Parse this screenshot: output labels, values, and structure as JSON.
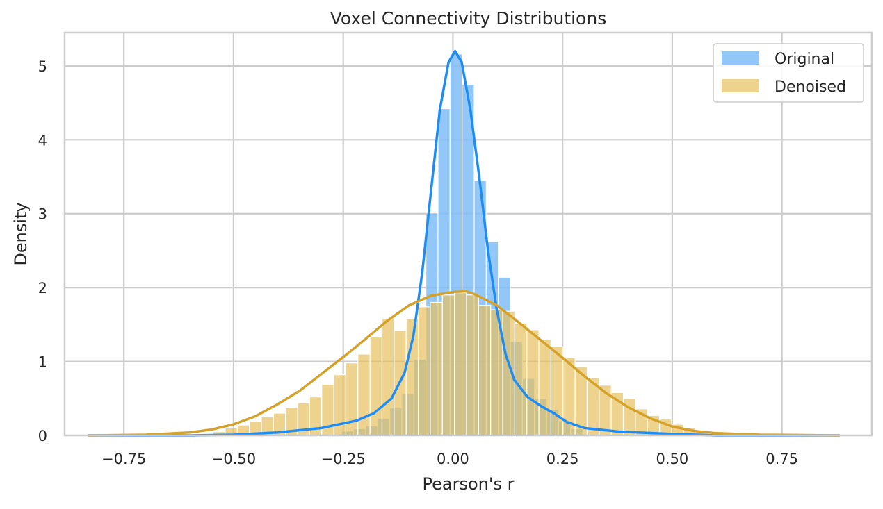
{
  "chart_data": {
    "type": "histogram",
    "title": "Voxel Connectivity Distributions",
    "xlabel": "Pearson's r",
    "ylabel": "Density",
    "xlim": [
      -0.885,
      0.955
    ],
    "ylim": [
      0,
      5.45
    ],
    "xticks": [
      -0.75,
      -0.5,
      -0.25,
      0.0,
      0.25,
      0.5,
      0.75
    ],
    "xtick_labels": [
      "−0.75",
      "−0.50",
      "−0.25",
      "0.00",
      "0.25",
      "0.50",
      "0.75"
    ],
    "yticks": [
      0,
      1,
      2,
      3,
      4,
      5
    ],
    "ytick_labels": [
      "0",
      "1",
      "2",
      "3",
      "4",
      "5"
    ],
    "grid": true,
    "legend_position": "top-right",
    "series": [
      {
        "name": "Original",
        "color": "#1e8cf5",
        "bar_color": "#80bdf7",
        "bin_width": 0.0275,
        "bins": [
          [
            -0.254,
            0.06
          ],
          [
            -0.2265,
            0.09
          ],
          [
            -0.199,
            0.13
          ],
          [
            -0.1715,
            0.23
          ],
          [
            -0.144,
            0.37
          ],
          [
            -0.1165,
            0.57
          ],
          [
            -0.089,
            1.03
          ],
          [
            -0.0615,
            3.01
          ],
          [
            -0.034,
            4.42
          ],
          [
            -0.0065,
            5.16
          ],
          [
            0.021,
            4.75
          ],
          [
            0.0485,
            3.45
          ],
          [
            0.076,
            2.62
          ],
          [
            0.1035,
            2.14
          ],
          [
            0.131,
            1.27
          ],
          [
            0.1585,
            0.77
          ],
          [
            0.186,
            0.5
          ],
          [
            0.2135,
            0.35
          ],
          [
            0.241,
            0.2
          ],
          [
            0.2685,
            0.09
          ]
        ],
        "kde": [
          [
            -0.83,
            0.0
          ],
          [
            -0.6,
            0.0
          ],
          [
            -0.5,
            0.01
          ],
          [
            -0.4,
            0.04
          ],
          [
            -0.3,
            0.1
          ],
          [
            -0.22,
            0.2
          ],
          [
            -0.18,
            0.3
          ],
          [
            -0.14,
            0.5
          ],
          [
            -0.11,
            0.85
          ],
          [
            -0.09,
            1.35
          ],
          [
            -0.07,
            2.2
          ],
          [
            -0.05,
            3.3
          ],
          [
            -0.03,
            4.4
          ],
          [
            -0.01,
            5.05
          ],
          [
            0.005,
            5.2
          ],
          [
            0.02,
            5.05
          ],
          [
            0.04,
            4.4
          ],
          [
            0.06,
            3.5
          ],
          [
            0.08,
            2.5
          ],
          [
            0.1,
            1.7
          ],
          [
            0.12,
            1.1
          ],
          [
            0.14,
            0.75
          ],
          [
            0.17,
            0.52
          ],
          [
            0.2,
            0.4
          ],
          [
            0.23,
            0.3
          ],
          [
            0.26,
            0.18
          ],
          [
            0.3,
            0.1
          ],
          [
            0.38,
            0.05
          ],
          [
            0.5,
            0.02
          ],
          [
            0.6,
            0.0
          ],
          [
            0.88,
            0.0
          ]
        ]
      },
      {
        "name": "Denoised",
        "color": "#d4a12a",
        "bar_color": "#e6c15c",
        "bin_width": 0.0275,
        "bins": [
          [
            -0.5465,
            0.05
          ],
          [
            -0.519,
            0.1
          ],
          [
            -0.4915,
            0.14
          ],
          [
            -0.464,
            0.19
          ],
          [
            -0.4365,
            0.25
          ],
          [
            -0.409,
            0.3
          ],
          [
            -0.3815,
            0.38
          ],
          [
            -0.354,
            0.44
          ],
          [
            -0.3265,
            0.52
          ],
          [
            -0.299,
            0.69
          ],
          [
            -0.2715,
            0.82
          ],
          [
            -0.244,
            0.98
          ],
          [
            -0.2165,
            1.1
          ],
          [
            -0.189,
            1.33
          ],
          [
            -0.1615,
            1.58
          ],
          [
            -0.134,
            1.42
          ],
          [
            -0.1065,
            1.58
          ],
          [
            -0.079,
            1.74
          ],
          [
            -0.0515,
            1.8
          ],
          [
            -0.024,
            1.9
          ],
          [
            0.0035,
            1.93
          ],
          [
            0.031,
            1.9
          ],
          [
            0.0585,
            1.76
          ],
          [
            0.086,
            1.7
          ],
          [
            0.1135,
            1.68
          ],
          [
            0.141,
            1.52
          ],
          [
            0.1685,
            1.43
          ],
          [
            0.196,
            1.3
          ],
          [
            0.2235,
            1.2
          ],
          [
            0.251,
            1.05
          ],
          [
            0.2785,
            0.93
          ],
          [
            0.306,
            0.78
          ],
          [
            0.3335,
            0.68
          ],
          [
            0.361,
            0.58
          ],
          [
            0.3885,
            0.5
          ],
          [
            0.416,
            0.36
          ],
          [
            0.4435,
            0.27
          ],
          [
            0.471,
            0.22
          ],
          [
            0.4985,
            0.15
          ],
          [
            0.526,
            0.1
          ],
          [
            0.5535,
            0.06
          ]
        ],
        "kde": [
          [
            -0.83,
            0.0
          ],
          [
            -0.7,
            0.01
          ],
          [
            -0.6,
            0.04
          ],
          [
            -0.55,
            0.08
          ],
          [
            -0.5,
            0.15
          ],
          [
            -0.45,
            0.26
          ],
          [
            -0.4,
            0.42
          ],
          [
            -0.35,
            0.6
          ],
          [
            -0.3,
            0.83
          ],
          [
            -0.25,
            1.06
          ],
          [
            -0.2,
            1.3
          ],
          [
            -0.15,
            1.55
          ],
          [
            -0.1,
            1.76
          ],
          [
            -0.05,
            1.89
          ],
          [
            0.0,
            1.94
          ],
          [
            0.03,
            1.95
          ],
          [
            0.05,
            1.91
          ],
          [
            0.1,
            1.76
          ],
          [
            0.15,
            1.53
          ],
          [
            0.2,
            1.29
          ],
          [
            0.25,
            1.05
          ],
          [
            0.3,
            0.8
          ],
          [
            0.35,
            0.57
          ],
          [
            0.4,
            0.38
          ],
          [
            0.45,
            0.23
          ],
          [
            0.5,
            0.12
          ],
          [
            0.55,
            0.06
          ],
          [
            0.6,
            0.03
          ],
          [
            0.7,
            0.01
          ],
          [
            0.88,
            0.0
          ]
        ]
      }
    ]
  }
}
